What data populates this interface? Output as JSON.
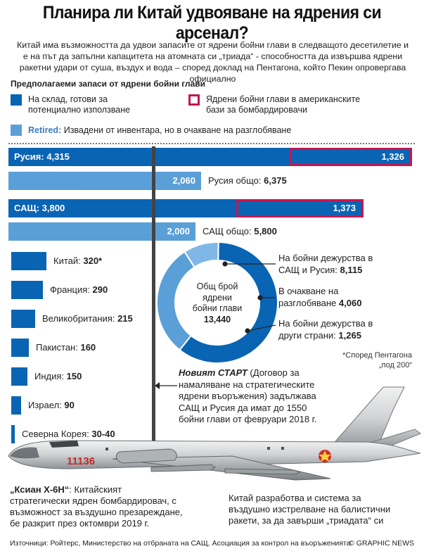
{
  "title": "Планира ли Китай удвояване на ядрения си арсенал?",
  "intro": "Китай има възможността да удвои запасите от ядрени бойни глави в следващото десетилетие и е на път да запълни капацитета на атомната си „триада“ - способността да извършва ядрени ракетни удари от суша, въздух и вода – според доклад на Пентагона, който Пекин опровергава официално",
  "legend": {
    "title": "Предполагаеми запаси от ядрени бойни глави",
    "stockpile_l1": "На склад, готови за",
    "stockpile_l2": "потенциално използване",
    "us_bases_l1": "Ядрени бойни глави в американските",
    "us_bases_l2": "бази за бомбардировачи",
    "retired_word": "Retired:",
    "retired_desc": "Извадени от инвентара, но в очакване на разглобяване",
    "colors": {
      "stockpile": "#0a64b4",
      "retired": "#5b9fd8",
      "us_bases": "#c4174f"
    }
  },
  "chart_data": {
    "type": "bar",
    "title": "Предполагаеми запаси от ядрени бойни глави",
    "main": [
      {
        "country": "Русия",
        "stockpile": 4315,
        "deployed_abroad": 1326,
        "retired": 2060,
        "total": 6375
      },
      {
        "country": "САЩ",
        "stockpile": 3800,
        "deployed_abroad": 1373,
        "retired": 2000,
        "total": 5800
      }
    ],
    "others": [
      {
        "country": "Китай",
        "value": 320,
        "note": "*"
      },
      {
        "country": "Франция",
        "value": 290
      },
      {
        "country": "Великобритания",
        "value": 215
      },
      {
        "country": "Пакистан",
        "value": 160
      },
      {
        "country": "Индия",
        "value": 150
      },
      {
        "country": "Израел",
        "value": 90
      },
      {
        "country": "Северна Корея",
        "value": "30-40"
      }
    ],
    "donut": {
      "total": 13440,
      "segments": [
        {
          "name": "На бойни дежурства в САЩ и Русия",
          "value": 8115,
          "color": "#0a64b4"
        },
        {
          "name": "В очакване на разглобяване",
          "value": 4060,
          "color": "#5b9fd8"
        },
        {
          "name": "На бойни дежурства в други страни",
          "value": 1265,
          "color": "#7fb8e6"
        }
      ]
    },
    "new_start_limit": 1550
  },
  "bars": {
    "russia_label": "Русия: 4,315",
    "russia_abroad": "1,326",
    "russia_retired": "2,060",
    "russia_total_label": "Русия общо:",
    "russia_total": "6,375",
    "us_label": "САЩ: 3,800",
    "us_abroad": "1,373",
    "us_retired": "2,000",
    "us_total_label": "САЩ общо:",
    "us_total": "5,800"
  },
  "others_labels": [
    {
      "name": "Китай:",
      "value": "320*"
    },
    {
      "name": "Франция:",
      "value": "290"
    },
    {
      "name": "Великобритания:",
      "value": "215"
    },
    {
      "name": "Пакистан:",
      "value": "160"
    },
    {
      "name": "Индия:",
      "value": "150"
    },
    {
      "name": "Израел:",
      "value": "90"
    },
    {
      "name": "Северна Корея:",
      "value": "30-40"
    }
  ],
  "donut_center": {
    "l1": "Общ брой",
    "l2": "ядрени",
    "l3": "бойни глави",
    "l4": "13,440"
  },
  "callouts": {
    "c1_l1": "На бойни дежурства в",
    "c1_l2": "САЩ и Русия:",
    "c1_v": "8,115",
    "c2_l1": "В очакване на",
    "c2_l2": "разглобяване",
    "c2_v": "4,060",
    "c3_l1": "На бойни дежурства в",
    "c3_l2": "други страни:",
    "c3_v": "1,265"
  },
  "footnote_l1": "*Според Пентагона",
  "footnote_l2": "„под 200“",
  "start": {
    "name": "Новият СТАРТ",
    "rest_l1": "(Договор за",
    "l2": "намаляване на стратегическите",
    "l3": "ядрени въоръжения) задължава",
    "l4": "САЩ и Русия да имат до 1550",
    "l5": "бойни глави от февруари 2018 г."
  },
  "plane_tail_number": "11136",
  "caption_left": {
    "name": "„Ксиан Х-6Н“",
    "l1": ": Китайският",
    "l2": "стратегически ядрен бомбардировач, с",
    "l3": "възможност за въздушно презареждане,",
    "l4": "бе разкрит през октомври 2019 г."
  },
  "caption_right": {
    "l1": "Китай разработва и система за",
    "l2": "въздушно изстрелване на балистични",
    "l3": "ракети, за да завърши „триадата“ си"
  },
  "sources": "Източници: Ройтерс, Министерство на отбраната на САЩ, Асоциация за контрол на въоръженията",
  "brand": "© GRAPHIC NEWS"
}
